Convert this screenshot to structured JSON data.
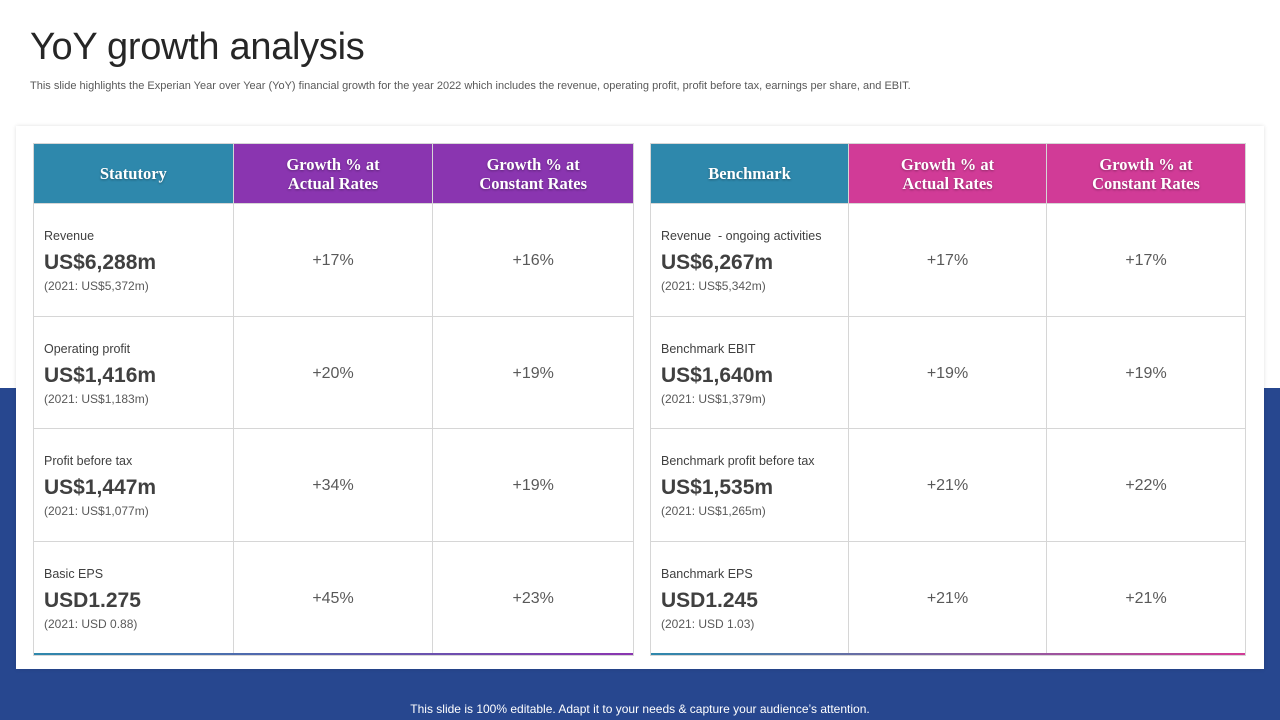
{
  "title": "YoY growth analysis",
  "subtitle": "This slide highlights the Experian Year over Year (YoY) financial growth for the year 2022 which includes the revenue, operating profit, profit before tax, earnings per share, and EBIT.",
  "colors": {
    "band": "#27478f",
    "teal": "#2e88ac",
    "purple": "#8a35b0",
    "magenta": "#d13b97"
  },
  "statutory": {
    "headers": [
      "Statutory",
      "Growth % at\nActual Rates",
      "Growth % at\nConstant Rates"
    ],
    "rows": [
      {
        "label": "Revenue",
        "value": "US$6,288m",
        "prev": "(2021: US$5,372m)",
        "actual": "+17%",
        "constant": "+16%"
      },
      {
        "label": "Operating profit",
        "value": "US$1,416m",
        "prev": "(2021: US$1,183m)",
        "actual": "+20%",
        "constant": "+19%"
      },
      {
        "label": "Profit before tax",
        "value": "US$1,447m",
        "prev": "(2021: US$1,077m)",
        "actual": "+34%",
        "constant": "+19%"
      },
      {
        "label": "Basic EPS",
        "value": "USD1.275",
        "prev": "(2021: USD 0.88)",
        "actual": "+45%",
        "constant": "+23%"
      }
    ]
  },
  "benchmark": {
    "headers": [
      "Benchmark",
      "Growth % at\nActual Rates",
      "Growth % at\nConstant Rates"
    ],
    "rows": [
      {
        "label": "Revenue  - ongoing activities",
        "value": "US$6,267m",
        "prev": "(2021: US$5,342m)",
        "actual": "+17%",
        "constant": "+17%"
      },
      {
        "label": "Benchmark EBIT",
        "value": "US$1,640m",
        "prev": "(2021: US$1,379m)",
        "actual": "+19%",
        "constant": "+19%"
      },
      {
        "label": "Benchmark profit before tax",
        "value": "US$1,535m",
        "prev": "(2021: US$1,265m)",
        "actual": "+21%",
        "constant": "+22%"
      },
      {
        "label": "Banchmark EPS",
        "value": "USD1.245",
        "prev": "(2021: USD 1.03)",
        "actual": "+21%",
        "constant": "+21%"
      }
    ]
  },
  "footer": "This slide is 100% editable. Adapt it to your needs & capture your audience’s attention."
}
